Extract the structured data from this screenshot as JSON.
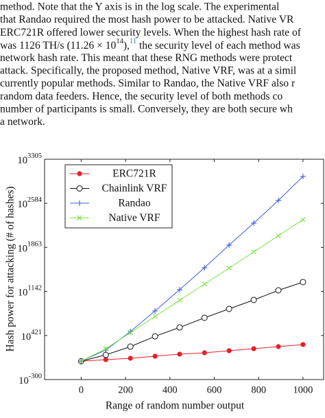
{
  "paragraph_lines": [
    "method. Note that the Y axis is in the log scale. The experimental",
    "that Randao required the most hash power to be attacked. Native VR",
    "ERC721R offered lower security levels. When the highest hash rate of",
    [
      {
        "text": "was 1126 TH/s (11.26 × 10"
      },
      {
        "sup": "14"
      },
      {
        "text": "),"
      },
      {
        "sup": "11",
        "color": "#3a6fd8"
      },
      {
        "text": " the security level of each method was"
      }
    ],
    "network hash rate. This meant that these RNG methods were protect",
    "attack. Specifically, the proposed method, Native VRF, was at a simil",
    "currently popular methods. Similar to Randao, the Native VRF also r",
    "random data feeders. Hence, the security level of both methods co",
    "number of participants is small. Conversely, they are both secure wh",
    "a network."
  ],
  "chart_data": {
    "type": "line",
    "xlabel": "Range of random number output",
    "ylabel": "Hash power for attacking (# of hashes)",
    "log_scale_y": true,
    "ytick_base": "10",
    "x": [
      0,
      111,
      222,
      333,
      444,
      556,
      667,
      778,
      889,
      1000
    ],
    "xlim": [
      -165,
      1093
    ],
    "xticks": [
      0,
      200,
      400,
      600,
      800,
      1000
    ],
    "ylim": [
      -300,
      3305
    ],
    "yticks": [
      -300,
      421,
      1142,
      1863,
      2584,
      3305
    ],
    "legend": "upper left",
    "series": [
      {
        "name": "ERC721R",
        "color": "#e8202a",
        "marker": "dot",
        "values": [
          0,
          26,
          48,
          82,
          116,
          138,
          172,
          205,
          239,
          273
        ]
      },
      {
        "name": "Chainlink VRF",
        "color": "#111111",
        "marker": "circle",
        "values": [
          0,
          104,
          239,
          407,
          553,
          711,
          857,
          1003,
          1160,
          1295
        ]
      },
      {
        "name": "Randao",
        "color": "#3b5fd9",
        "marker": "plus",
        "values": [
          0,
          183,
          486,
          823,
          1171,
          1530,
          1901,
          2260,
          2631,
          3024
        ]
      },
      {
        "name": "Native VRF",
        "color": "#7be33f",
        "marker": "cross",
        "values": [
          0,
          205,
          469,
          733,
          997,
          1261,
          1525,
          1789,
          2053,
          2317
        ]
      }
    ]
  }
}
